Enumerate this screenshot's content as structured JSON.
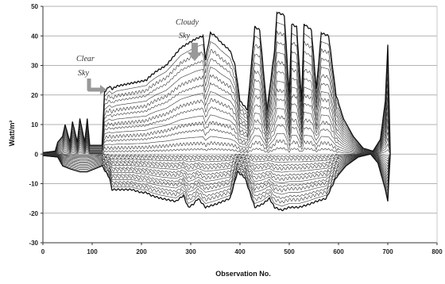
{
  "chart_data": {
    "type": "line",
    "title": "",
    "xlabel": "Observation No.",
    "ylabel": "Watt/m²",
    "xlim": [
      0,
      800
    ],
    "ylim": [
      -30,
      50
    ],
    "x_ticks": [
      "0",
      "100",
      "200",
      "300",
      "400",
      "500",
      "600",
      "700",
      "800"
    ],
    "y_ticks": [
      "50",
      "40",
      "30",
      "20",
      "10",
      "0",
      "-10",
      "-20",
      "-30"
    ],
    "grid": "horizontal",
    "legend": "none",
    "annotations": [
      {
        "text": "Clear Sky",
        "target": [
          135,
          19
        ]
      },
      {
        "text": "Cloudy Sky",
        "target": [
          300,
          30
        ]
      }
    ],
    "envelope": {
      "upper": [
        [
          0,
          0.5
        ],
        [
          25,
          1
        ],
        [
          30,
          4
        ],
        [
          40,
          6
        ],
        [
          45,
          10
        ],
        [
          55,
          4
        ],
        [
          60,
          11
        ],
        [
          70,
          4
        ],
        [
          75,
          12
        ],
        [
          85,
          4
        ],
        [
          90,
          12
        ],
        [
          95,
          3
        ],
        [
          120,
          3
        ],
        [
          125,
          21
        ],
        [
          135,
          23
        ],
        [
          140,
          22
        ],
        [
          150,
          23
        ],
        [
          180,
          24
        ],
        [
          210,
          25
        ],
        [
          215,
          26
        ],
        [
          230,
          28
        ],
        [
          250,
          30
        ],
        [
          270,
          34
        ],
        [
          280,
          36
        ],
        [
          290,
          37
        ],
        [
          300,
          38
        ],
        [
          310,
          39
        ],
        [
          325,
          40
        ],
        [
          330,
          32
        ],
        [
          340,
          41
        ],
        [
          350,
          40
        ],
        [
          360,
          38
        ],
        [
          380,
          35
        ],
        [
          390,
          30
        ],
        [
          400,
          18
        ],
        [
          415,
          15
        ],
        [
          430,
          43
        ],
        [
          440,
          42
        ],
        [
          455,
          15
        ],
        [
          470,
          35
        ],
        [
          475,
          48
        ],
        [
          490,
          47
        ],
        [
          500,
          20
        ],
        [
          505,
          44
        ],
        [
          515,
          43
        ],
        [
          525,
          18
        ],
        [
          530,
          44
        ],
        [
          545,
          42
        ],
        [
          555,
          22
        ],
        [
          565,
          41
        ],
        [
          580,
          40
        ],
        [
          595,
          20
        ],
        [
          610,
          12
        ],
        [
          630,
          6
        ],
        [
          650,
          2
        ],
        [
          670,
          1
        ],
        [
          685,
          5
        ],
        [
          695,
          18
        ],
        [
          700,
          37
        ],
        [
          705,
          0
        ]
      ],
      "lower": [
        [
          0,
          -0.5
        ],
        [
          30,
          -1
        ],
        [
          40,
          -4
        ],
        [
          55,
          -5
        ],
        [
          75,
          -6
        ],
        [
          90,
          -6
        ],
        [
          120,
          -4
        ],
        [
          135,
          -8
        ],
        [
          140,
          -12
        ],
        [
          180,
          -12
        ],
        [
          200,
          -13
        ],
        [
          210,
          -13
        ],
        [
          220,
          -14
        ],
        [
          240,
          -15
        ],
        [
          270,
          -16
        ],
        [
          285,
          -14
        ],
        [
          295,
          -18
        ],
        [
          305,
          -17
        ],
        [
          315,
          -15
        ],
        [
          330,
          -18
        ],
        [
          350,
          -17
        ],
        [
          380,
          -15
        ],
        [
          395,
          -6
        ],
        [
          410,
          -8
        ],
        [
          430,
          -18
        ],
        [
          445,
          -17
        ],
        [
          460,
          -15
        ],
        [
          470,
          -18
        ],
        [
          485,
          -19
        ],
        [
          500,
          -18
        ],
        [
          520,
          -18
        ],
        [
          540,
          -17
        ],
        [
          555,
          -16
        ],
        [
          575,
          -15
        ],
        [
          595,
          -8
        ],
        [
          615,
          -4
        ],
        [
          640,
          -1
        ],
        [
          665,
          0
        ],
        [
          680,
          -3
        ],
        [
          695,
          -12
        ],
        [
          700,
          -16
        ],
        [
          705,
          0
        ]
      ]
    },
    "series_count": 16
  }
}
